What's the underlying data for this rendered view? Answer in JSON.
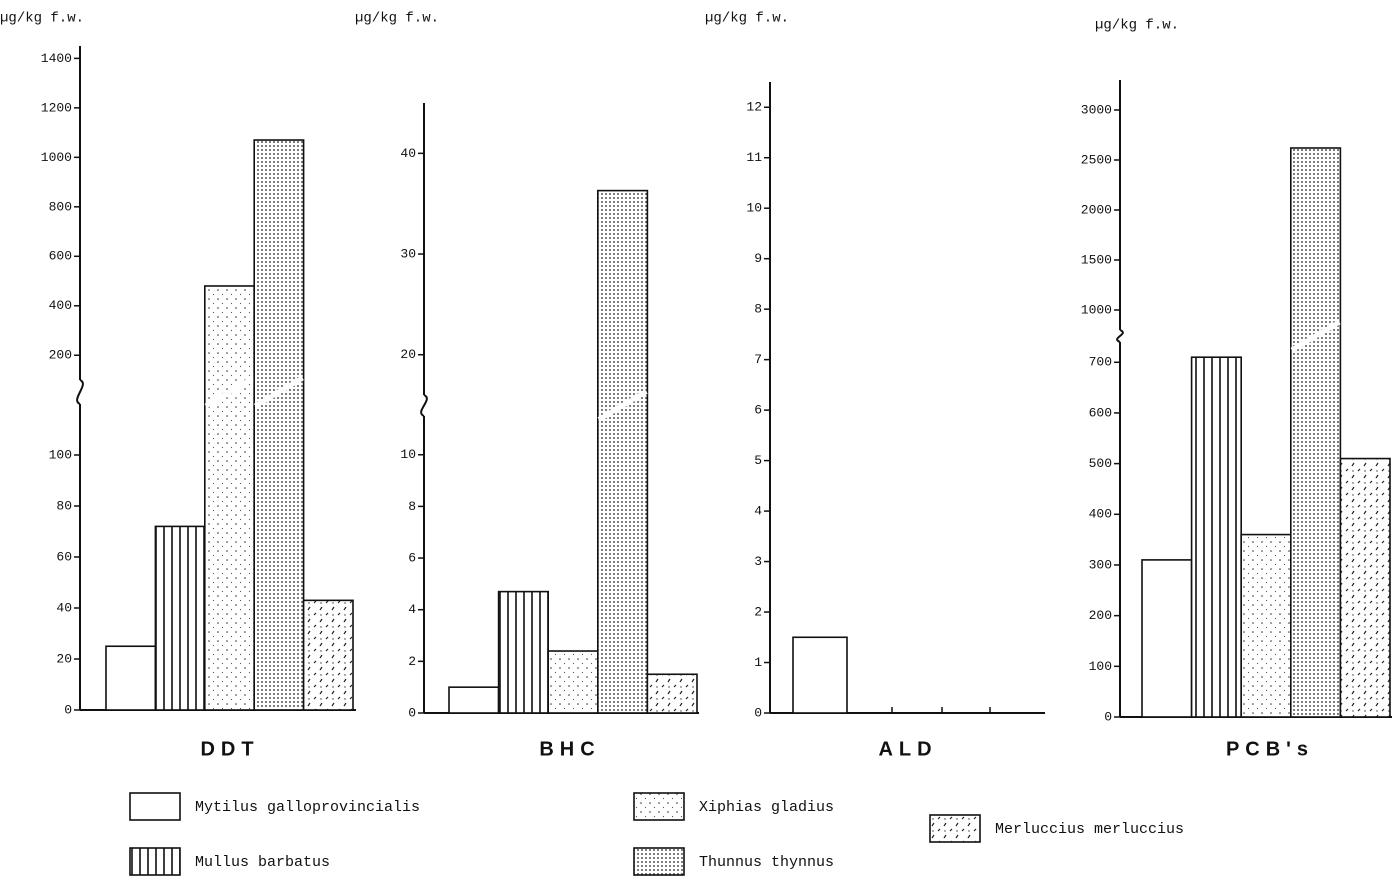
{
  "chart_data": {
    "type": "bar",
    "series": [
      {
        "name": "Mytilus galloprovincialis",
        "pattern": "blank"
      },
      {
        "name": "Mullus  barbatus",
        "pattern": "vertical-lines"
      },
      {
        "name": "Xiphias gladius",
        "pattern": "sparse-dots"
      },
      {
        "name": "Thunnus thynnus",
        "pattern": "dense-dots"
      },
      {
        "name": "Merluccius merluccius",
        "pattern": "dashes"
      }
    ],
    "panels": [
      {
        "ylabel": "µg/kg  f.w.",
        "xlabel": "DDT",
        "values": [
          25,
          72,
          480,
          1070,
          43
        ],
        "segments": [
          {
            "ylim": [
              0,
              120
            ],
            "yticks": [
              0,
              20,
              40,
              60,
              80,
              100
            ]
          },
          {
            "ylim": [
              100,
              1450
            ],
            "yticks": [
              200,
              400,
              600,
              800,
              1000,
              1200,
              1400
            ]
          }
        ]
      },
      {
        "ylabel": "µg/kg  f.w.",
        "xlabel": "BHC",
        "values": [
          1.0,
          4.7,
          2.4,
          36.3,
          1.5
        ],
        "segments": [
          {
            "ylim": [
              0,
              11.5
            ],
            "yticks": [
              0,
              2,
              4,
              6,
              8,
              10
            ]
          },
          {
            "ylim": [
              16,
              45
            ],
            "yticks": [
              20,
              30,
              40
            ]
          }
        ]
      },
      {
        "ylabel": "µg/kg  f.w.",
        "xlabel": "ALD",
        "values": [
          1.5,
          null,
          null,
          null,
          null
        ],
        "segments": [
          {
            "ylim": [
              0,
              12.5
            ],
            "yticks": [
              0,
              1,
              2,
              3,
              4,
              5,
              6,
              7,
              8,
              9,
              10,
              11,
              12
            ]
          }
        ]
      },
      {
        "ylabel": "µg/kg  f.w.",
        "xlabel": "PCB's",
        "values": [
          310,
          710,
          360,
          2620,
          510
        ],
        "segments": [
          {
            "ylim": [
              0,
              740
            ],
            "yticks": [
              0,
              100,
              200,
              300,
              400,
              500,
              600,
              700
            ]
          },
          {
            "ylim": [
              800,
              3300
            ],
            "yticks": [
              1000,
              1500,
              2000,
              2500,
              3000
            ]
          }
        ]
      }
    ]
  }
}
